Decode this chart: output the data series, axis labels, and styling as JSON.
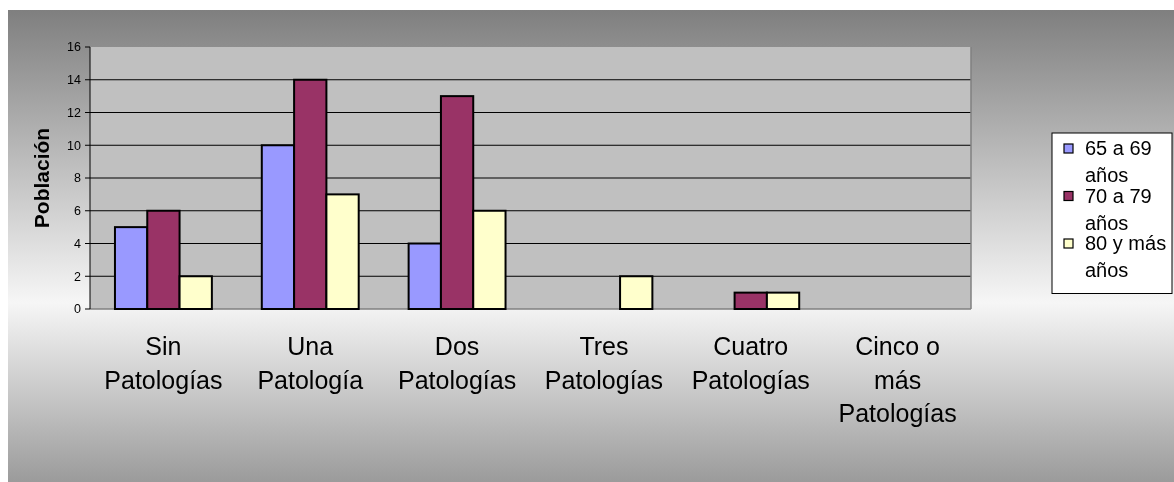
{
  "chart_data": {
    "type": "bar",
    "ylabel": "Población",
    "categories": [
      "Sin Patologías",
      "Una Patología",
      "Dos Patologías",
      "Tres Patologías",
      "Cuatro Patologías",
      "Cinco o más Patologías"
    ],
    "series": [
      {
        "name": "65 a 69 años",
        "color": "#9999ff",
        "values": [
          5,
          10,
          4,
          0,
          0,
          0
        ]
      },
      {
        "name": "70 a 79 años",
        "color": "#993366",
        "values": [
          6,
          14,
          13,
          0,
          1,
          0
        ]
      },
      {
        "name": "80 y más años",
        "color": "#ffffcc",
        "values": [
          2,
          7,
          6,
          2,
          1,
          0
        ]
      }
    ],
    "ylim": [
      0,
      16
    ],
    "yticks": [
      0,
      2,
      4,
      6,
      8,
      10,
      12,
      14,
      16
    ],
    "grid": "y",
    "legend": "right"
  }
}
